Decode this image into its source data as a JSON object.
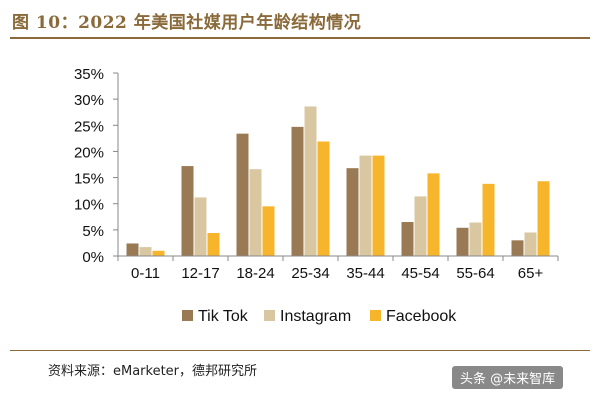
{
  "header": {
    "title": "图 10：2022 年美国社媒用户年龄结构情况"
  },
  "footer": {
    "source": "资料来源：eMarketer，德邦研究所",
    "watermark": "头条 @未来智库"
  },
  "chart_data": {
    "type": "bar",
    "categories": [
      "0-11",
      "12-17",
      "18-24",
      "25-34",
      "35-44",
      "45-54",
      "55-64",
      "65+"
    ],
    "series": [
      {
        "name": "Tik Tok",
        "color": "#9a7a55",
        "values": [
          2.4,
          17.2,
          23.4,
          24.7,
          16.8,
          6.5,
          5.4,
          3.0
        ]
      },
      {
        "name": "Instagram",
        "color": "#d8c7a0",
        "values": [
          1.7,
          11.2,
          16.6,
          28.6,
          19.2,
          11.4,
          6.4,
          4.5
        ]
      },
      {
        "name": "Facebook",
        "color": "#f7b52b",
        "values": [
          1.0,
          4.4,
          9.5,
          21.9,
          19.2,
          15.8,
          13.8,
          14.3
        ]
      }
    ],
    "ylim": [
      0,
      35
    ],
    "yticks": [
      "0%",
      "5%",
      "10%",
      "15%",
      "20%",
      "25%",
      "30%",
      "35%"
    ],
    "ytick_values": [
      0,
      5,
      10,
      15,
      20,
      25,
      30,
      35
    ],
    "legend_position": "bottom",
    "grid": false
  }
}
